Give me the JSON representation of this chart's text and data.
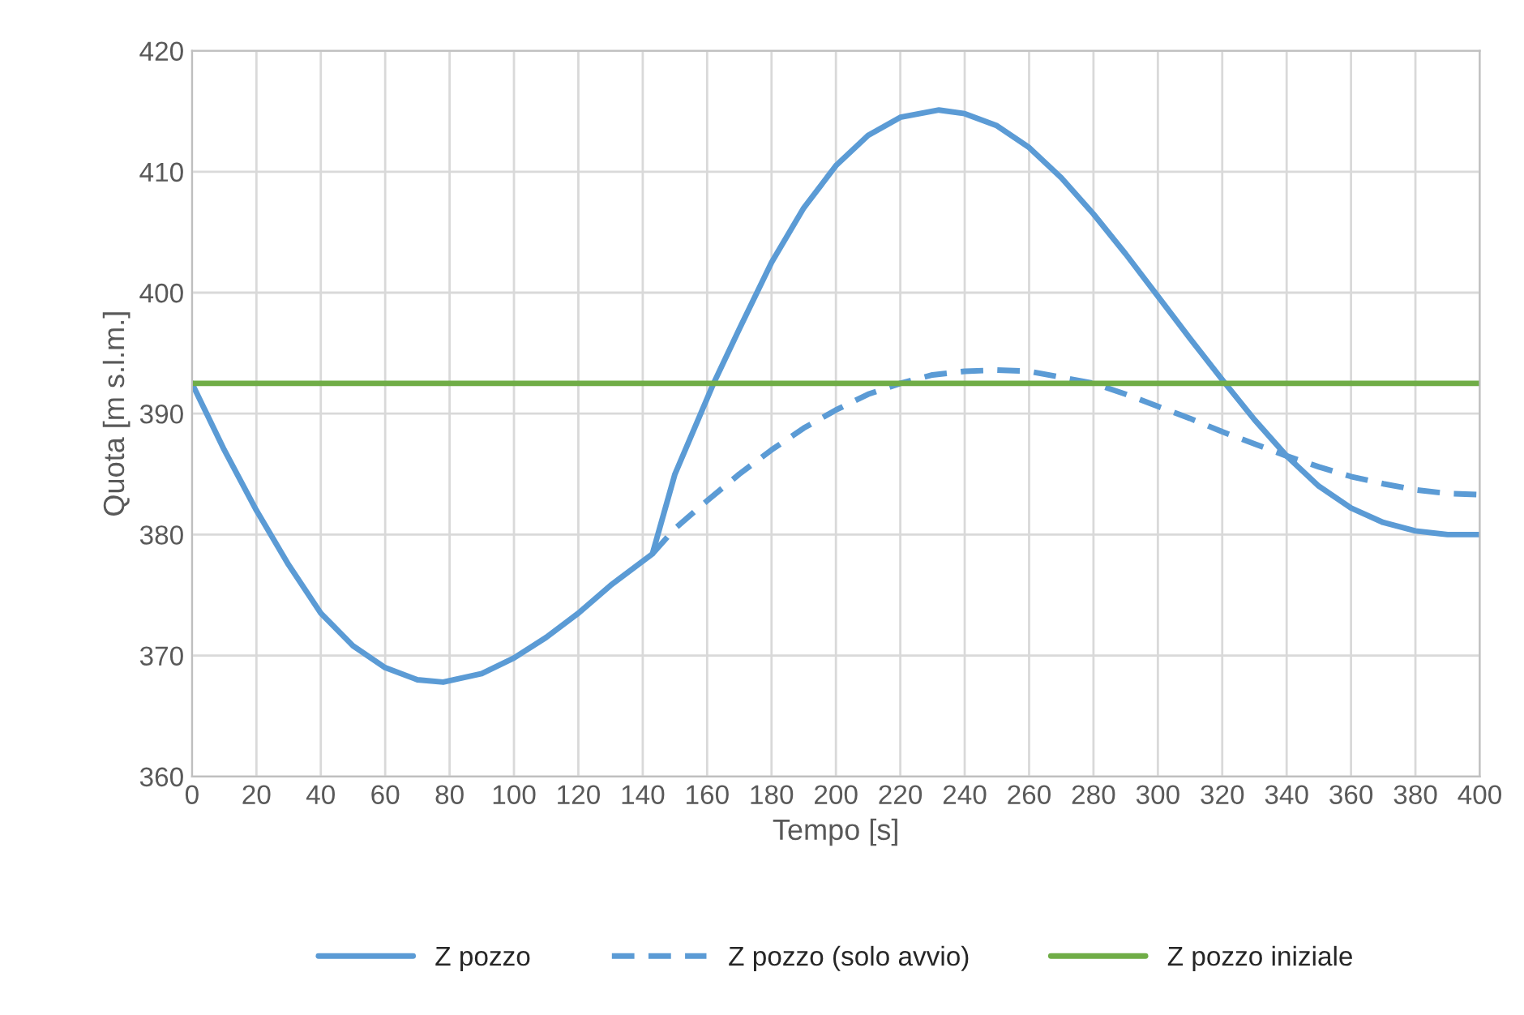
{
  "chart_data": {
    "type": "line",
    "xlabel": "Tempo [s]",
    "ylabel": "Quota [m s.l.m.]",
    "xlim": [
      0,
      400
    ],
    "xticks": [
      0,
      20,
      40,
      60,
      80,
      100,
      120,
      140,
      160,
      180,
      200,
      220,
      240,
      260,
      280,
      300,
      320,
      340,
      360,
      380,
      400
    ],
    "ylim": [
      360,
      420
    ],
    "yticks": [
      360,
      370,
      380,
      390,
      400,
      410,
      420
    ],
    "grid": true,
    "legend": "bottom",
    "marker": "none",
    "series": [
      {
        "name": "Z pozzo",
        "color": "#5b9bd5",
        "line_style": "solid",
        "x": [
          0,
          10,
          20,
          30,
          40,
          50,
          60,
          70,
          78,
          90,
          100,
          110,
          120,
          130,
          143,
          150,
          162,
          170,
          180,
          190,
          200,
          210,
          220,
          232,
          240,
          250,
          260,
          270,
          280,
          290,
          300,
          310,
          320,
          330,
          340,
          350,
          360,
          370,
          380,
          390,
          400
        ],
        "values": [
          392.5,
          387,
          382,
          377.5,
          373.5,
          370.8,
          369,
          368,
          367.8,
          368.5,
          369.8,
          371.5,
          373.5,
          375.8,
          378.4,
          385,
          392.5,
          397,
          402.5,
          407,
          410.5,
          413,
          414.5,
          415.1,
          414.8,
          413.8,
          412,
          409.5,
          406.5,
          403.2,
          399.7,
          396.2,
          392.8,
          389.5,
          386.5,
          384,
          382.2,
          381,
          380.3,
          380,
          380
        ]
      },
      {
        "name": "Z pozzo (solo avvio)",
        "color": "#5b9bd5",
        "line_style": "dashed",
        "x": [
          143,
          150,
          160,
          170,
          180,
          190,
          200,
          210,
          220,
          230,
          240,
          250,
          260,
          270,
          280,
          290,
          300,
          310,
          320,
          330,
          340,
          350,
          360,
          370,
          380,
          390,
          400
        ],
        "values": [
          378.4,
          380.5,
          382.8,
          385,
          387,
          388.8,
          390.3,
          391.6,
          392.5,
          393.2,
          393.5,
          393.6,
          393.5,
          393,
          392.5,
          391.6,
          390.6,
          389.6,
          388.5,
          387.5,
          386.5,
          385.6,
          384.8,
          384.2,
          383.7,
          383.4,
          383.3
        ]
      },
      {
        "name": "Z pozzo iniziale",
        "color": "#70ad47",
        "line_style": "solid",
        "x": [
          0,
          400
        ],
        "values": [
          392.5,
          392.5
        ]
      }
    ]
  }
}
